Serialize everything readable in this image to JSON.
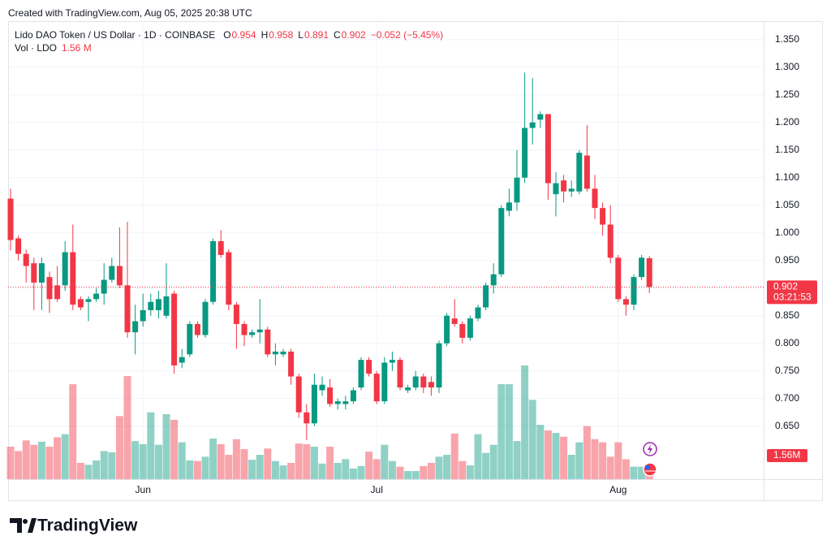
{
  "header": {
    "created": "Created with TradingView.com, Aug 05, 2025 20:38 UTC"
  },
  "chart_data": {
    "type": "candlestick",
    "symbol": "Lido DAO Token / US Dollar · 1D · COINBASE",
    "ohlc_legend": [
      {
        "key": "O",
        "value": "0.954"
      },
      {
        "key": "H",
        "value": "0.958"
      },
      {
        "key": "L",
        "value": "0.891"
      },
      {
        "key": "C",
        "value": "0.902"
      }
    ],
    "change_label": "−0.052 (−5.45%)",
    "up_color": "#089981",
    "down_color": "#f23645",
    "categories": [
      null,
      null,
      null,
      null,
      null,
      null,
      null,
      null,
      null,
      null,
      null,
      null,
      null,
      null,
      null,
      null,
      null,
      "Jun",
      null,
      null,
      null,
      null,
      null,
      null,
      null,
      null,
      null,
      null,
      null,
      null,
      null,
      null,
      null,
      null,
      null,
      null,
      null,
      null,
      null,
      null,
      null,
      null,
      null,
      null,
      null,
      null,
      null,
      "Jul",
      null,
      null,
      null,
      null,
      null,
      null,
      null,
      null,
      null,
      null,
      null,
      null,
      null,
      null,
      null,
      null,
      null,
      null,
      null,
      null,
      null,
      null,
      null,
      null,
      null,
      null,
      null,
      null,
      null,
      null,
      "Aug",
      null,
      null,
      null,
      null
    ],
    "open": [
      1.062,
      0.99,
      0.962,
      0.945,
      0.91,
      0.92,
      0.905,
      0.905,
      0.965,
      0.88,
      0.875,
      0.88,
      0.89,
      0.915,
      0.94,
      0.905,
      0.82,
      0.84,
      0.86,
      0.86,
      0.85,
      0.89,
      0.765,
      0.78,
      0.835,
      0.815,
      0.875,
      0.985,
      0.965,
      0.87,
      0.835,
      0.815,
      0.82,
      0.825,
      0.78,
      0.78,
      0.785,
      0.74,
      0.675,
      0.655,
      0.715,
      0.72,
      0.69,
      0.69,
      0.695,
      0.72,
      0.77,
      0.745,
      0.695,
      0.765,
      0.77,
      0.715,
      0.72,
      0.74,
      0.73,
      0.72,
      0.8,
      0.845,
      0.835,
      0.81,
      0.845,
      0.865,
      0.905,
      0.925,
      1.04,
      1.055,
      1.1,
      1.19,
      1.205,
      1.215,
      1.07,
      1.095,
      1.075,
      1.075,
      1.14,
      1.08,
      1.045,
      1.015,
      0.955,
      0.88,
      0.87,
      0.92,
      0.954
    ],
    "high": [
      1.08,
      0.995,
      0.97,
      0.955,
      0.955,
      0.93,
      0.94,
      0.985,
      1.015,
      0.885,
      0.885,
      0.9,
      0.945,
      0.955,
      1.01,
      1.02,
      0.87,
      0.89,
      0.89,
      0.895,
      0.945,
      0.895,
      0.79,
      0.84,
      0.84,
      0.88,
      0.99,
      1.005,
      0.97,
      0.875,
      0.84,
      0.825,
      0.88,
      0.83,
      0.8,
      0.79,
      0.79,
      0.745,
      0.69,
      0.745,
      0.74,
      0.735,
      0.7,
      0.705,
      0.72,
      0.775,
      0.775,
      0.75,
      0.775,
      0.785,
      0.775,
      0.725,
      0.75,
      0.745,
      0.74,
      0.805,
      0.855,
      0.88,
      0.84,
      0.85,
      0.87,
      0.91,
      0.945,
      1.05,
      1.08,
      1.15,
      1.29,
      1.28,
      1.22,
      1.215,
      1.11,
      1.105,
      1.095,
      1.15,
      1.195,
      1.105,
      1.055,
      1.05,
      0.96,
      0.885,
      0.925,
      0.96,
      0.958
    ],
    "low": [
      0.968,
      0.95,
      0.91,
      0.86,
      0.86,
      0.855,
      0.875,
      0.895,
      0.86,
      0.86,
      0.84,
      0.875,
      0.87,
      0.91,
      0.9,
      0.81,
      0.78,
      0.83,
      0.85,
      0.845,
      0.845,
      0.745,
      0.755,
      0.775,
      0.81,
      0.81,
      0.87,
      0.955,
      0.86,
      0.79,
      0.795,
      0.81,
      0.8,
      0.775,
      0.76,
      0.775,
      0.725,
      0.665,
      0.625,
      0.65,
      0.705,
      0.685,
      0.68,
      0.68,
      0.69,
      0.715,
      0.74,
      0.69,
      0.69,
      0.75,
      0.715,
      0.71,
      0.715,
      0.71,
      0.705,
      0.71,
      0.795,
      0.83,
      0.8,
      0.805,
      0.84,
      0.86,
      0.89,
      0.92,
      1.03,
      1.04,
      1.09,
      1.16,
      1.19,
      1.06,
      1.03,
      1.055,
      1.065,
      1.07,
      1.075,
      1.025,
      0.995,
      0.945,
      0.875,
      0.85,
      0.86,
      0.915,
      0.891
    ],
    "close": [
      0.987,
      0.962,
      0.94,
      0.91,
      0.945,
      0.88,
      0.88,
      0.965,
      0.87,
      0.865,
      0.88,
      0.89,
      0.915,
      0.94,
      0.905,
      0.82,
      0.84,
      0.86,
      0.875,
      0.88,
      0.885,
      0.76,
      0.775,
      0.835,
      0.815,
      0.875,
      0.985,
      0.96,
      0.87,
      0.835,
      0.815,
      0.82,
      0.825,
      0.78,
      0.785,
      0.785,
      0.74,
      0.675,
      0.655,
      0.725,
      0.725,
      0.69,
      0.695,
      0.695,
      0.715,
      0.77,
      0.745,
      0.695,
      0.765,
      0.77,
      0.72,
      0.72,
      0.74,
      0.72,
      0.72,
      0.8,
      0.85,
      0.835,
      0.81,
      0.845,
      0.865,
      0.905,
      0.925,
      1.045,
      1.055,
      1.1,
      1.19,
      1.2,
      1.215,
      1.09,
      1.09,
      1.075,
      1.08,
      1.145,
      1.08,
      1.045,
      1.015,
      0.955,
      0.88,
      0.87,
      0.92,
      0.955,
      0.902
    ],
    "volume": {
      "name": "Vol · LDO",
      "legend_label": "1.56 M",
      "axis_label": "1.56M",
      "values": [
        5.2,
        4.5,
        6.2,
        5.5,
        6.0,
        5.2,
        6.7,
        7.2,
        15.2,
        2.6,
        2.3,
        3.0,
        4.5,
        4.3,
        10.1,
        16.5,
        6.1,
        5.6,
        10.7,
        5.5,
        10.4,
        9.5,
        5.9,
        3.0,
        2.9,
        3.6,
        6.5,
        5.6,
        3.9,
        6.4,
        4.8,
        3.1,
        3.9,
        4.9,
        2.9,
        2.2,
        2.6,
        5.7,
        5.6,
        5.2,
        2.5,
        5.2,
        2.6,
        3.2,
        1.7,
        2.1,
        4.4,
        3.2,
        5.5,
        2.9,
        2.0,
        1.3,
        1.3,
        2.1,
        2.6,
        3.6,
        3.9,
        7.3,
        2.9,
        2.2,
        7.2,
        4.2,
        5.5,
        15.2,
        15.2,
        6.1,
        18.2,
        12.7,
        8.7,
        7.8,
        7.4,
        6.8,
        3.9,
        5.9,
        8.5,
        6.4,
        5.9,
        3.6,
        5.9,
        3.2,
        2.0,
        2.0,
        1.56
      ]
    },
    "last_price_label": "0.902",
    "countdown": "03:21:53",
    "ylim": [
      0.554,
      1.382
    ],
    "yticks": [
      {
        "value": 1.35,
        "label": "1.350"
      },
      {
        "value": 1.3,
        "label": "1.300"
      },
      {
        "value": 1.25,
        "label": "1.250"
      },
      {
        "value": 1.2,
        "label": "1.200"
      },
      {
        "value": 1.15,
        "label": "1.150"
      },
      {
        "value": 1.1,
        "label": "1.100"
      },
      {
        "value": 1.05,
        "label": "1.050"
      },
      {
        "value": 1,
        "label": "1.000"
      },
      {
        "value": 0.95,
        "label": "0.950"
      },
      {
        "value": 0.9,
        "label": "0.900"
      },
      {
        "value": 0.85,
        "label": "0.850"
      },
      {
        "value": 0.8,
        "label": "0.800"
      },
      {
        "value": 0.75,
        "label": "0.750"
      },
      {
        "value": 0.7,
        "label": "0.700"
      },
      {
        "value": 0.65,
        "label": "0.650"
      }
    ],
    "grid": true
  },
  "footer": {
    "brand": "TradingView"
  }
}
